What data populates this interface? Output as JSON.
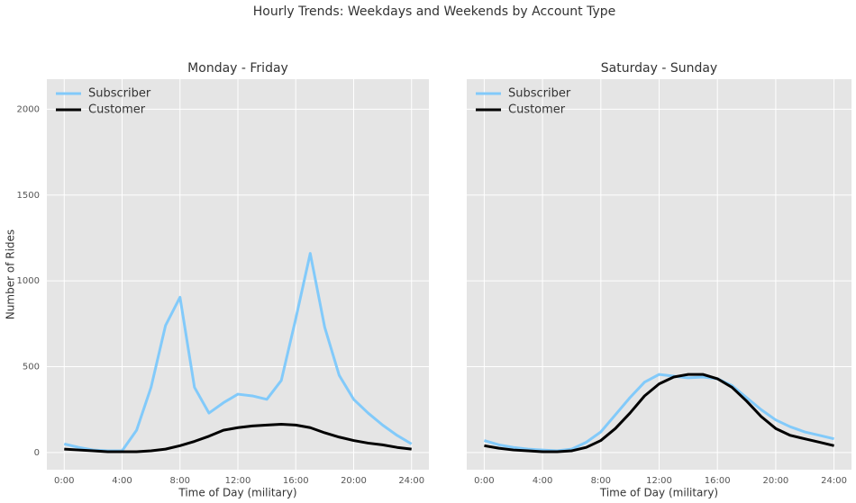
{
  "title": "Hourly Trends: Weekdays and Weekends by Account Type",
  "chart_data": [
    {
      "type": "line",
      "title": "Monday - Friday",
      "xlabel": "Time of Day (military)",
      "ylabel": "Number of Rides",
      "x": [
        0,
        1,
        2,
        3,
        4,
        5,
        6,
        7,
        8,
        9,
        10,
        11,
        12,
        13,
        14,
        15,
        16,
        17,
        18,
        19,
        20,
        21,
        22,
        23,
        24
      ],
      "series": [
        {
          "name": "Subscriber",
          "color": "#82cafa",
          "values": [
            50,
            30,
            15,
            10,
            10,
            130,
            380,
            740,
            905,
            380,
            230,
            290,
            340,
            330,
            310,
            420,
            780,
            1160,
            730,
            450,
            310,
            230,
            160,
            100,
            50
          ]
        },
        {
          "name": "Customer",
          "color": "#000000",
          "values": [
            20,
            15,
            10,
            5,
            5,
            5,
            10,
            20,
            40,
            65,
            95,
            130,
            145,
            155,
            160,
            165,
            160,
            145,
            115,
            90,
            70,
            55,
            45,
            30,
            20
          ]
        }
      ],
      "xlim": [
        -1.2,
        25.2
      ],
      "ylim": [
        -100,
        2175
      ],
      "xticks": [
        {
          "value": 0,
          "label": "0:00"
        },
        {
          "value": 4,
          "label": "4:00"
        },
        {
          "value": 8,
          "label": "8:00"
        },
        {
          "value": 12,
          "label": "12:00"
        },
        {
          "value": 16,
          "label": "16:00"
        },
        {
          "value": 20,
          "label": "20:00"
        },
        {
          "value": 24,
          "label": "24:00"
        }
      ],
      "yticks": [
        0,
        500,
        1000,
        1500,
        2000
      ],
      "show_ytick_labels": true,
      "grid": true,
      "legend": "upper-left"
    },
    {
      "type": "line",
      "title": "Saturday - Sunday",
      "xlabel": "Time of Day (military)",
      "x": [
        0,
        1,
        2,
        3,
        4,
        5,
        6,
        7,
        8,
        9,
        10,
        11,
        12,
        13,
        14,
        15,
        16,
        17,
        18,
        19,
        20,
        21,
        22,
        23,
        24
      ],
      "series": [
        {
          "name": "Subscriber",
          "color": "#82cafa",
          "values": [
            70,
            45,
            30,
            20,
            15,
            10,
            20,
            60,
            120,
            220,
            320,
            410,
            455,
            445,
            435,
            440,
            430,
            390,
            320,
            250,
            190,
            150,
            120,
            100,
            80
          ]
        },
        {
          "name": "Customer",
          "color": "#000000",
          "values": [
            40,
            25,
            15,
            10,
            5,
            5,
            10,
            30,
            70,
            140,
            230,
            330,
            400,
            440,
            455,
            455,
            430,
            380,
            300,
            210,
            140,
            100,
            80,
            60,
            40
          ]
        }
      ],
      "xlim": [
        -1.2,
        25.2
      ],
      "ylim": [
        -100,
        2175
      ],
      "xticks": [
        {
          "value": 0,
          "label": "0:00"
        },
        {
          "value": 4,
          "label": "4:00"
        },
        {
          "value": 8,
          "label": "8:00"
        },
        {
          "value": 12,
          "label": "12:00"
        },
        {
          "value": 16,
          "label": "16:00"
        },
        {
          "value": 20,
          "label": "20:00"
        },
        {
          "value": 24,
          "label": "24:00"
        }
      ],
      "yticks": [
        0,
        500,
        1000,
        1500,
        2000
      ],
      "show_ytick_labels": false,
      "grid": true,
      "legend": "upper-left"
    }
  ]
}
